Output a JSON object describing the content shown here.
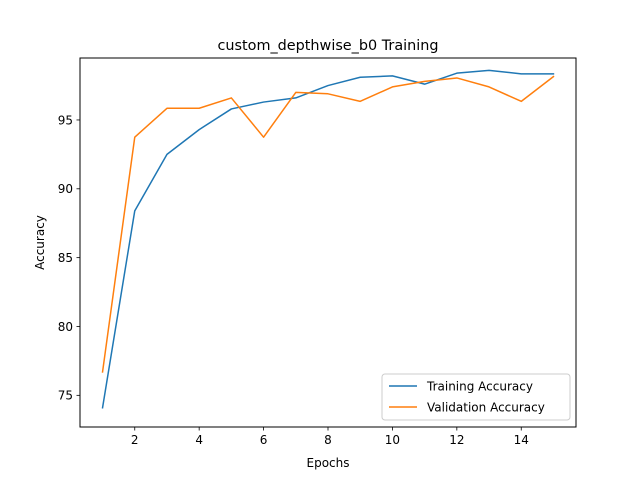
{
  "chart_data": {
    "type": "line",
    "title": "custom_depthwise_b0 Training",
    "xlabel": "Epochs",
    "ylabel": "Accuracy",
    "x": [
      1,
      2,
      3,
      4,
      5,
      6,
      7,
      8,
      9,
      10,
      11,
      12,
      13,
      14,
      15
    ],
    "xlim": [
      0.3,
      15.7
    ],
    "ylim": [
      72.7,
      99.5
    ],
    "xticks": [
      2,
      4,
      6,
      8,
      10,
      12,
      14
    ],
    "yticks": [
      75,
      80,
      85,
      90,
      95
    ],
    "grid": false,
    "legend_position": "lower-right",
    "series": [
      {
        "name": "Training Accuracy",
        "color": "#1f77b4",
        "values": [
          74.1,
          88.4,
          92.5,
          94.3,
          95.8,
          96.3,
          96.6,
          97.5,
          98.1,
          98.2,
          97.6,
          98.4,
          98.6,
          98.35,
          98.35
        ]
      },
      {
        "name": "Validation Accuracy",
        "color": "#ff7f0e",
        "values": [
          76.7,
          93.75,
          95.85,
          95.85,
          96.6,
          93.75,
          97.0,
          96.9,
          96.35,
          97.4,
          97.8,
          98.05,
          97.4,
          96.35,
          98.15
        ]
      }
    ]
  }
}
